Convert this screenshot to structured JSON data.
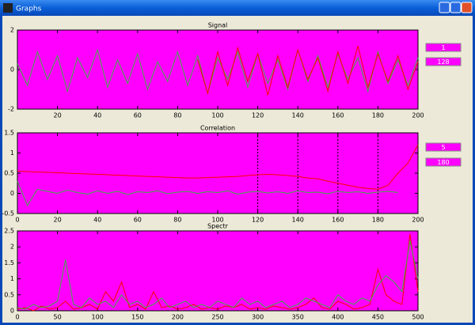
{
  "window": {
    "title": "Graphs"
  },
  "side_boxes": [
    [
      "1",
      "128"
    ],
    [
      "5",
      "180"
    ]
  ],
  "chart_data": [
    {
      "type": "line",
      "title": "Signal",
      "plot_color": "#ff00ff",
      "x": [
        0,
        5,
        10,
        15,
        20,
        25,
        30,
        35,
        40,
        45,
        50,
        55,
        60,
        65,
        70,
        75,
        80,
        85,
        90,
        95,
        100,
        105,
        110,
        115,
        120,
        125,
        130,
        135,
        140,
        145,
        150,
        155,
        160,
        165,
        170,
        175,
        180,
        185,
        190,
        195,
        200
      ],
      "series": [
        {
          "color": "#3cb043",
          "values": [
            0.3,
            -0.8,
            0.9,
            -0.5,
            0.7,
            -1.1,
            0.6,
            -0.4,
            1.0,
            -0.9,
            0.5,
            -0.7,
            0.8,
            -1.0,
            0.4,
            -0.6,
            0.9,
            -0.8,
            0.7,
            -1.2,
            0.6,
            -0.5,
            0.9,
            -0.9,
            0.8,
            -0.7,
            0.5,
            -1.0,
            1.0,
            -0.6,
            0.7,
            -0.9,
            0.8,
            -0.5,
            0.6,
            -1.1,
            0.9,
            -0.7,
            0.5,
            -0.8,
            0.6
          ]
        },
        {
          "color": "#ff0000",
          "values": [
            null,
            null,
            null,
            null,
            null,
            null,
            null,
            null,
            null,
            null,
            null,
            null,
            null,
            null,
            null,
            null,
            null,
            null,
            0.5,
            -1.2,
            0.9,
            -0.8,
            1.1,
            -0.6,
            0.8,
            -1.3,
            0.7,
            -0.9,
            1.0,
            -0.5,
            0.6,
            -1.1,
            0.9,
            -0.7,
            1.2,
            -0.9,
            0.8,
            -0.6,
            0.7,
            -1.0,
            0.4
          ]
        }
      ],
      "xlim": [
        0,
        200
      ],
      "xticks": [
        20,
        40,
        60,
        80,
        100,
        120,
        140,
        160,
        180,
        200
      ],
      "ylim": [
        -2,
        2
      ],
      "yticks": [
        -2,
        0,
        2
      ]
    },
    {
      "type": "line",
      "title": "Correlation",
      "plot_color": "#ff00ff",
      "x": [
        0,
        5,
        10,
        15,
        20,
        25,
        30,
        35,
        40,
        45,
        50,
        55,
        60,
        65,
        70,
        75,
        80,
        85,
        90,
        95,
        100,
        105,
        110,
        115,
        120,
        125,
        130,
        135,
        140,
        145,
        150,
        155,
        160,
        165,
        170,
        175,
        180,
        185,
        190,
        195,
        200
      ],
      "series": [
        {
          "color": "#ff0000",
          "values": [
            0.55,
            0.54,
            0.53,
            0.52,
            0.51,
            0.5,
            0.49,
            0.48,
            0.47,
            0.46,
            0.45,
            0.44,
            0.43,
            0.42,
            0.41,
            0.4,
            0.39,
            0.38,
            0.38,
            0.39,
            0.4,
            0.41,
            0.42,
            0.44,
            0.46,
            0.47,
            0.46,
            0.44,
            0.42,
            0.38,
            0.36,
            0.3,
            0.25,
            0.2,
            0.15,
            0.12,
            0.1,
            0.2,
            0.5,
            0.75,
            1.2
          ]
        },
        {
          "color": "#3cb043",
          "values": [
            0.3,
            -0.3,
            0.1,
            0.05,
            0.0,
            0.08,
            0.02,
            -0.02,
            0.06,
            0.0,
            0.05,
            -0.03,
            0.04,
            0.02,
            0.06,
            -0.01,
            0.03,
            0.05,
            0.0,
            0.04,
            0.02,
            0.06,
            -0.02,
            0.03,
            0.05,
            0.01,
            0.04,
            0.0,
            0.06,
            0.02,
            0.03,
            -0.01,
            0.05,
            0.02,
            0.04,
            0.0,
            0.03,
            0.05,
            0.02,
            null,
            null
          ]
        }
      ],
      "vlines": [
        120,
        140,
        160,
        180
      ],
      "xlim": [
        0,
        200
      ],
      "xticks": [
        0,
        20,
        40,
        60,
        80,
        100,
        120,
        140,
        160,
        180,
        200
      ],
      "ylim": [
        -0.5,
        1.5
      ],
      "yticks": [
        -0.5,
        0,
        0.5,
        1,
        1.5
      ]
    },
    {
      "type": "line",
      "title": "Spectr",
      "plot_color": "#ff00ff",
      "x": [
        0,
        10,
        20,
        30,
        40,
        50,
        60,
        70,
        80,
        90,
        100,
        110,
        120,
        130,
        140,
        150,
        160,
        170,
        180,
        190,
        200,
        210,
        220,
        230,
        240,
        250,
        260,
        270,
        280,
        290,
        300,
        310,
        320,
        330,
        340,
        350,
        360,
        370,
        380,
        390,
        400,
        410,
        420,
        430,
        440,
        450,
        460,
        470,
        480,
        490,
        500
      ],
      "series": [
        {
          "color": "#ff0000",
          "values": [
            0.05,
            0.1,
            0.0,
            0.15,
            0.05,
            0.1,
            0.3,
            0.05,
            0.1,
            0.2,
            0.05,
            0.6,
            0.3,
            0.9,
            0.1,
            0.2,
            0.05,
            0.6,
            0.1,
            0.15,
            0.05,
            0.1,
            0.2,
            0.05,
            0.1,
            0.05,
            0.15,
            0.1,
            0.2,
            0.05,
            0.1,
            0.05,
            0.15,
            0.1,
            0.05,
            0.1,
            0.2,
            0.4,
            0.1,
            0.05,
            0.3,
            0.2,
            0.05,
            0.1,
            0.2,
            1.3,
            0.5,
            0.3,
            0.2,
            2.4,
            0.6
          ]
        },
        {
          "color": "#3cb043",
          "values": [
            0.1,
            0.05,
            0.2,
            0.1,
            0.15,
            0.3,
            1.6,
            0.2,
            0.1,
            0.4,
            0.2,
            0.3,
            0.1,
            0.5,
            0.2,
            0.3,
            0.1,
            0.2,
            0.4,
            0.1,
            0.2,
            0.3,
            0.1,
            0.2,
            0.1,
            0.3,
            0.2,
            0.1,
            0.4,
            0.2,
            0.3,
            0.1,
            0.2,
            0.3,
            0.1,
            0.2,
            0.4,
            0.3,
            0.2,
            0.1,
            0.5,
            0.3,
            0.2,
            0.4,
            0.3,
            0.8,
            1.1,
            0.9,
            0.6,
            2.2,
            1.0
          ]
        }
      ],
      "xlim": [
        0,
        500
      ],
      "xticks": [
        0,
        50,
        100,
        150,
        200,
        250,
        300,
        350,
        400,
        450,
        500
      ],
      "ylim": [
        0,
        2.5
      ],
      "yticks": [
        0,
        0.5,
        1,
        1.5,
        2,
        2.5
      ]
    }
  ]
}
